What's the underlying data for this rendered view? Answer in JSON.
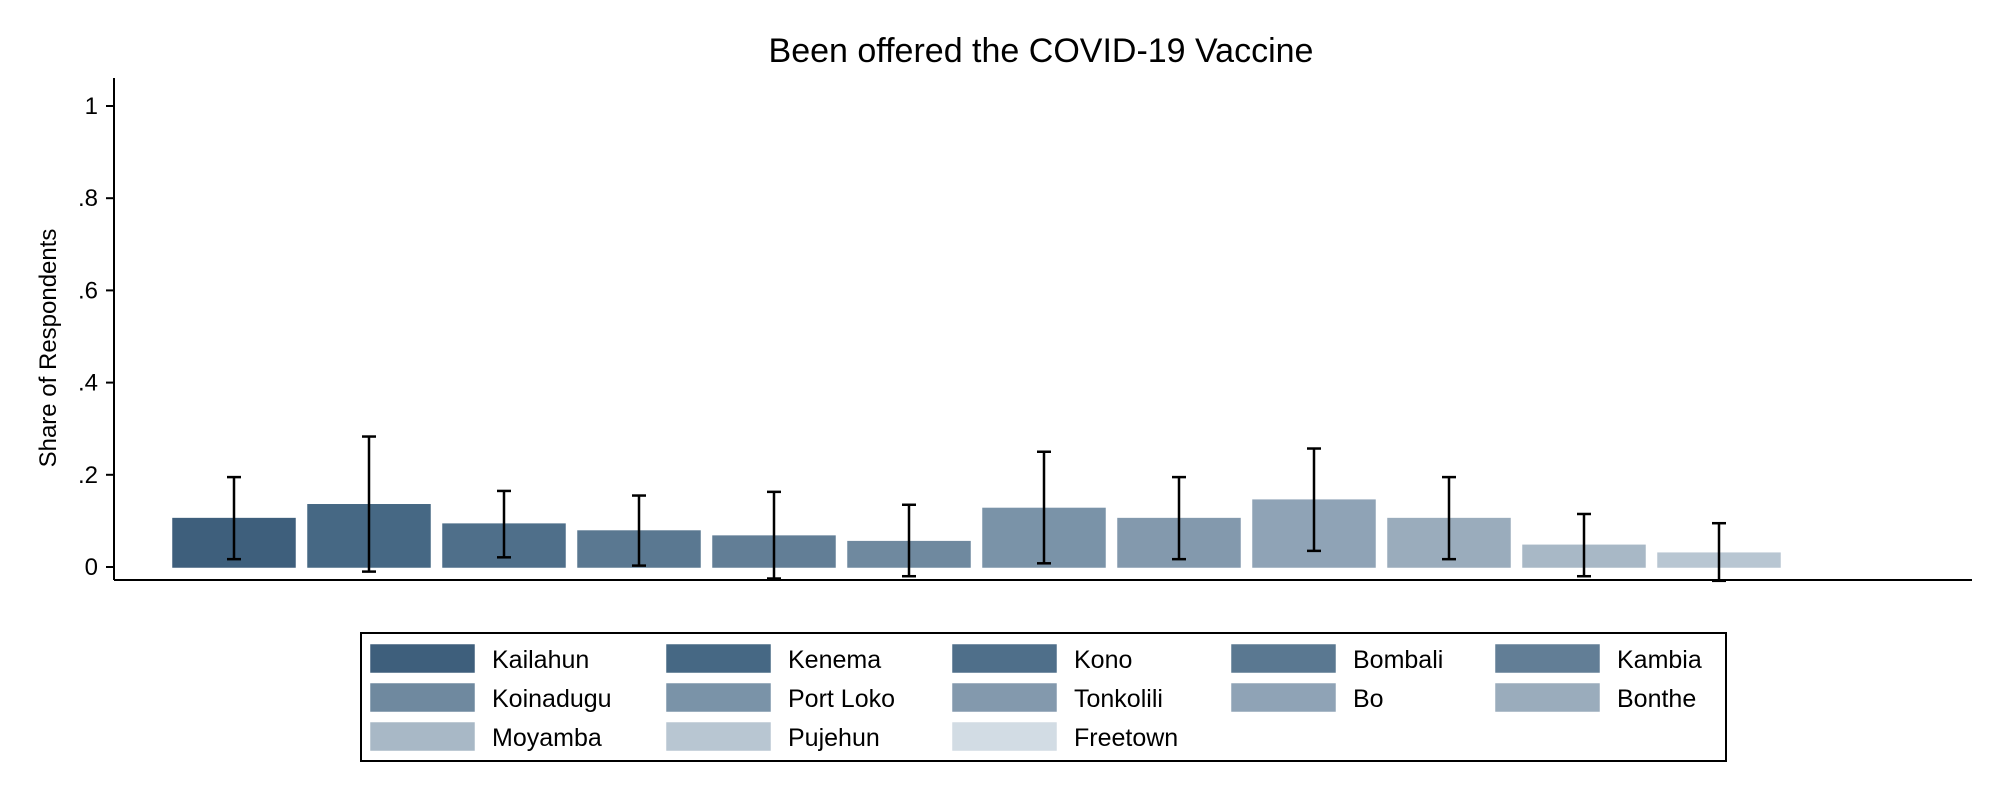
{
  "chart_data": {
    "type": "bar",
    "title": "Been offered the COVID-19 Vaccine",
    "xlabel": "",
    "ylabel": "Share of Respondents",
    "ylim": [
      0,
      1
    ],
    "yticks": [
      {
        "value": 0,
        "label": "0"
      },
      {
        "value": 0.2,
        "label": ".2"
      },
      {
        "value": 0.4,
        "label": ".4"
      },
      {
        "value": 0.6,
        "label": ".6"
      },
      {
        "value": 0.8,
        "label": ".8"
      },
      {
        "value": 1,
        "label": "1"
      }
    ],
    "grid": false,
    "error_bars": true,
    "legend_position": "bottom",
    "categories": [
      "Kailahun",
      "Kenema",
      "Kono",
      "Bombali",
      "Kambia",
      "Koinadugu",
      "Port Loko",
      "Tonkolili",
      "Bo",
      "Bonthe",
      "Moyamba",
      "Pujehun",
      "Freetown"
    ],
    "values": [
      0.105,
      0.135,
      0.093,
      0.078,
      0.067,
      0.055,
      0.127,
      0.105,
      0.145,
      0.105,
      0.047,
      0.03,
      null
    ],
    "ci_low": [
      0.017,
      -0.01,
      0.021,
      0.003,
      -0.025,
      -0.02,
      0.008,
      0.017,
      0.035,
      0.017,
      -0.02,
      -0.03,
      null
    ],
    "ci_high": [
      0.195,
      0.283,
      0.165,
      0.155,
      0.163,
      0.135,
      0.25,
      0.195,
      0.257,
      0.195,
      0.115,
      0.095,
      null
    ],
    "colors": [
      "#3e5f7c",
      "#466884",
      "#4f6f8a",
      "#5a7891",
      "#627e96",
      "#6f899f",
      "#7a93a8",
      "#8399ad",
      "#8fa3b6",
      "#9aacbc",
      "#a8b8c6",
      "#b8c6d2",
      "#d2dce4"
    ]
  }
}
